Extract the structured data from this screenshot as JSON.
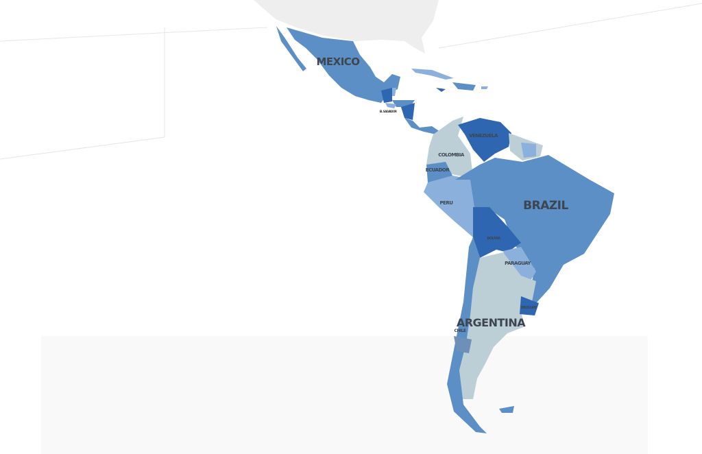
{
  "colors": {
    "background": "#ffffff",
    "other_land": "#eeeeee",
    "mid_blue": "#5b8fc5",
    "dark_blue": "#2f66b2",
    "light_blue": "#8cb0dc",
    "grey_blue": "#bccfd6"
  },
  "labels": {
    "mexico": "MEXICO",
    "brazil": "BRAZIL",
    "argentina": "ARGENTINA",
    "venezuela": "VENEZUELA",
    "colombia": "COLOMBIA",
    "ecuador": "ECUADOR",
    "peru": "PERU",
    "bolivia": "BOLIVIA",
    "paraguay": "PARAGUAY",
    "uruguay": "URUGUAY",
    "chile": "CHILE",
    "el_salvador": "EL SALVADOR"
  }
}
